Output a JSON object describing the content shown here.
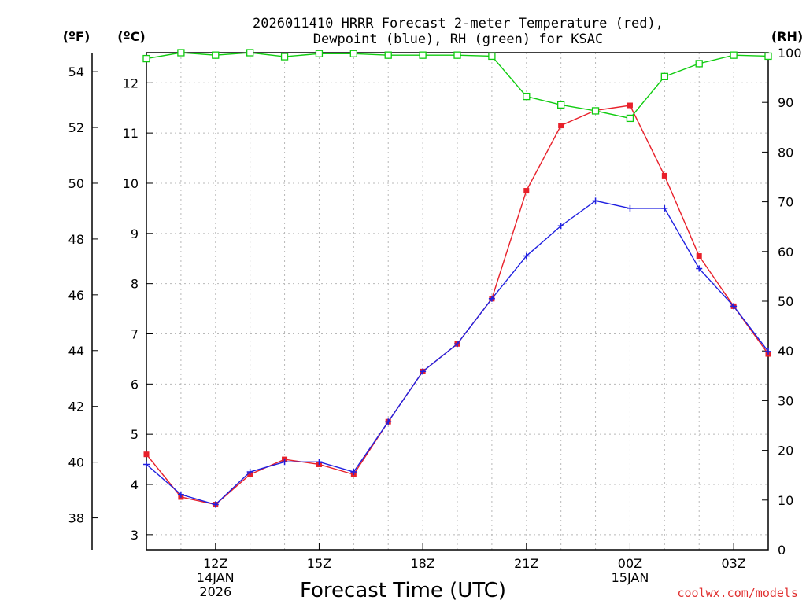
{
  "chart_data": {
    "type": "line",
    "title": "2026011410 HRRR Forecast 2-meter Temperature (red), Dewpoint (blue), RH (green) for KSAC",
    "title_lines": [
      "2026011410 HRRR Forecast 2-meter Temperature (red),",
      "Dewpoint (blue), RH (green) for KSAC"
    ],
    "xlabel": "Forecast Time (UTC)",
    "credit": "coolwx.com/models",
    "units": {
      "fahrenheit": "(ºF)",
      "celsius": "(ºC)",
      "rh": "(RH)"
    },
    "x_hours": [
      10,
      11,
      12,
      13,
      14,
      15,
      16,
      17,
      18,
      19,
      20,
      21,
      22,
      23,
      24,
      25,
      26,
      27,
      28
    ],
    "xlim": [
      10,
      28
    ],
    "x_ticks": [
      {
        "hour": 12,
        "lines": [
          "12Z",
          "14JAN",
          "2026"
        ]
      },
      {
        "hour": 15,
        "lines": [
          "15Z"
        ]
      },
      {
        "hour": 18,
        "lines": [
          "18Z"
        ]
      },
      {
        "hour": 21,
        "lines": [
          "21Z"
        ]
      },
      {
        "hour": 24,
        "lines": [
          "00Z",
          "15JAN"
        ]
      },
      {
        "hour": 27,
        "lines": [
          "03Z"
        ]
      }
    ],
    "celsius_axis": {
      "ylim": [
        2.7,
        12.6
      ],
      "ticks": [
        3,
        4,
        5,
        6,
        7,
        8,
        9,
        10,
        11,
        12
      ]
    },
    "fahrenheit_axis": {
      "ticks": [
        38,
        40,
        42,
        44,
        46,
        48,
        50,
        52,
        54
      ]
    },
    "rh_axis": {
      "ylim": [
        0,
        100
      ],
      "ticks": [
        0,
        10,
        20,
        30,
        40,
        50,
        60,
        70,
        80,
        90,
        100
      ]
    },
    "series": [
      {
        "name": "Temperature",
        "axis": "celsius",
        "color": "#e8202a",
        "marker": "filled-square",
        "values": [
          4.6,
          3.75,
          3.6,
          4.2,
          4.5,
          4.4,
          4.2,
          5.25,
          6.25,
          6.8,
          7.7,
          9.85,
          11.15,
          11.45,
          11.55,
          10.15,
          8.55,
          7.55,
          6.6
        ]
      },
      {
        "name": "Dewpoint",
        "axis": "celsius",
        "color": "#2020e0",
        "marker": "plus",
        "values": [
          4.4,
          3.8,
          3.6,
          4.25,
          4.45,
          4.45,
          4.25,
          5.25,
          6.25,
          6.8,
          7.7,
          8.55,
          9.15,
          9.65,
          9.5,
          9.5,
          8.3,
          7.55,
          6.65
        ]
      },
      {
        "name": "RH",
        "axis": "rh",
        "color": "#10cc10",
        "marker": "open-square",
        "values": [
          98.8,
          100,
          99.5,
          100,
          99.2,
          99.8,
          99.8,
          99.5,
          99.5,
          99.5,
          99.3,
          91.2,
          89.5,
          88.3,
          86.8,
          95.2,
          97.8,
          99.5,
          99.3
        ]
      }
    ],
    "grid": true
  }
}
